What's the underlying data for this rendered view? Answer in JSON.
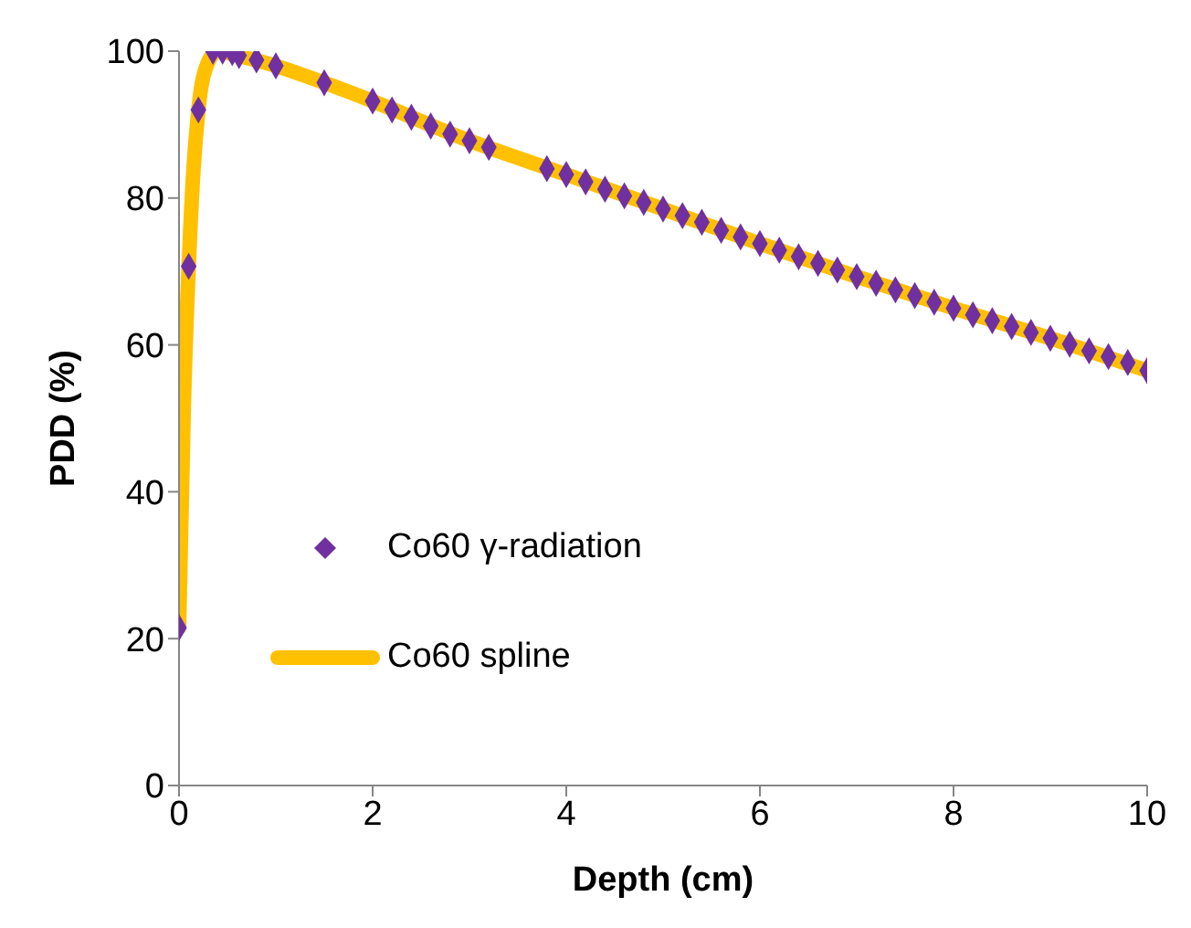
{
  "chart_data": {
    "type": "scatter",
    "xlabel": "Depth (cm)",
    "ylabel": "PDD (%)",
    "xlim": [
      0,
      10
    ],
    "xticks": [
      0,
      2,
      4,
      6,
      8,
      10
    ],
    "ylim": [
      0,
      100
    ],
    "yticks": [
      0,
      20,
      40,
      60,
      80,
      100
    ],
    "grid": false,
    "legend": "left",
    "marker": "diamond",
    "x": [
      0,
      0.1,
      0.2,
      0.35,
      0.45,
      0.55,
      0.62,
      0.8,
      1.0,
      1.5,
      2.0,
      2.2,
      2.4,
      2.6,
      2.8,
      3.0,
      3.2,
      3.8,
      4.0,
      4.2,
      4.4,
      4.6,
      4.8,
      5.0,
      5.2,
      5.4,
      5.6,
      5.8,
      6.0,
      6.2,
      6.4,
      6.6,
      6.8,
      7.0,
      7.2,
      7.4,
      7.6,
      7.8,
      8.0,
      8.2,
      8.4,
      8.6,
      8.8,
      9.0,
      9.2,
      9.4,
      9.6,
      9.8,
      10.0
    ],
    "series": [
      {
        "name": "Co60 γ-radiation",
        "color": "#7030a0",
        "values": [
          21.5,
          70.7,
          92,
          100,
          100,
          99.8,
          99.4,
          98.8,
          98,
          95.7,
          93.2,
          92,
          91,
          89.8,
          88.7,
          87.8,
          86.9,
          84,
          83.2,
          82.2,
          81.2,
          80.3,
          79.4,
          78.5,
          77.6,
          76.7,
          75.6,
          74.7,
          73.8,
          72.9,
          72,
          71.1,
          70.2,
          69.3,
          68.4,
          67.5,
          66.7,
          65.8,
          65,
          64.1,
          63.3,
          62.5,
          61.7,
          60.9,
          60.1,
          59.2,
          58.4,
          57.6,
          56.5
        ]
      },
      {
        "name": "Co60 spline",
        "type": "line",
        "color": "#ffc000",
        "marker": "none",
        "x": [
          0,
          0.05,
          0.1,
          0.15,
          0.2,
          0.3,
          0.4,
          0.6,
          1.0,
          1.5,
          2.0,
          3.0,
          4.0,
          5.0,
          6.0,
          7.0,
          8.0,
          9.0,
          10.0
        ],
        "values": [
          21.5,
          52,
          70.7,
          84,
          92,
          98.5,
          100,
          99.4,
          98,
          95.7,
          93.2,
          87.8,
          83.2,
          78.5,
          73.8,
          69.3,
          65,
          60.9,
          56.5
        ]
      }
    ]
  }
}
